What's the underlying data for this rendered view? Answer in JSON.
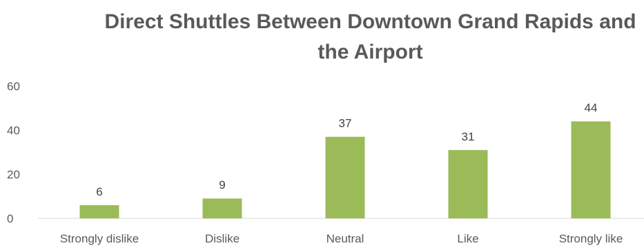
{
  "chart_data": {
    "type": "bar",
    "title": "Direct Shuttles Between Downtown Grand Rapids and the Airport",
    "categories": [
      "Strongly dislike",
      "Dislike",
      "Neutral",
      "Like",
      "Strongly like"
    ],
    "values": [
      6,
      9,
      37,
      31,
      44
    ],
    "ylim": [
      0,
      60
    ],
    "yticks": [
      0,
      20,
      40,
      60
    ],
    "xlabel": "",
    "ylabel": "",
    "grid": false,
    "legend": "none",
    "bar_color": "#9BBB59",
    "data_labels": true
  }
}
